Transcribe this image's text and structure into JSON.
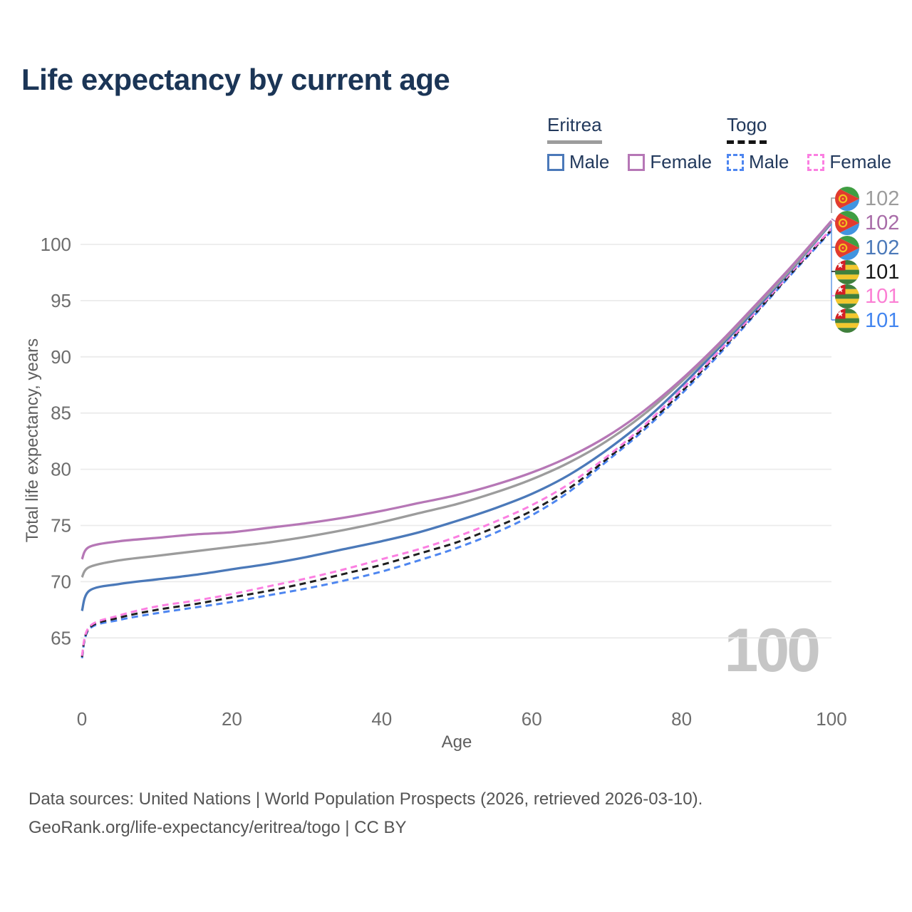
{
  "header": {
    "title": "Life expectancy by current age"
  },
  "legend": {
    "groups": [
      {
        "country": "Eritrea",
        "line_style": "solid",
        "underline_color": "#9c9c9c",
        "items": [
          {
            "label": "Male",
            "color": "#4b79b9",
            "dashed": false
          },
          {
            "label": "Female",
            "color": "#b677b6",
            "dashed": false
          }
        ]
      },
      {
        "country": "Togo",
        "line_style": "dashed",
        "underline_color": "#141414",
        "items": [
          {
            "label": "Male",
            "color": "#4e86f0",
            "dashed": true
          },
          {
            "label": "Female",
            "color": "#fb7fe1",
            "dashed": true
          }
        ]
      }
    ]
  },
  "chart_data": {
    "type": "line",
    "title": "Life expectancy by current age",
    "xlabel": "Age",
    "ylabel": "Total life expectancy, years",
    "xlim": [
      0,
      100
    ],
    "ylim": [
      59,
      105
    ],
    "xticks": [
      0,
      20,
      40,
      60,
      80,
      100
    ],
    "yticks": [
      65,
      70,
      75,
      80,
      85,
      90,
      95,
      100
    ],
    "grid": "horizontal-only",
    "age_counter": "100",
    "x": [
      0,
      1,
      5,
      10,
      15,
      20,
      25,
      30,
      35,
      40,
      45,
      50,
      55,
      60,
      65,
      70,
      75,
      80,
      85,
      90,
      95,
      100
    ],
    "series": [
      {
        "name": "Togo Male",
        "country": "Togo",
        "sex": "Male",
        "color": "#4e86f0",
        "dashed": true,
        "values": [
          63.2,
          65.8,
          66.6,
          67.2,
          67.7,
          68.2,
          68.8,
          69.4,
          70.1,
          70.9,
          71.9,
          73.0,
          74.3,
          75.9,
          78.0,
          80.7,
          83.5,
          86.7,
          90.2,
          93.9,
          97.6,
          101.2
        ]
      },
      {
        "name": "Togo Total",
        "country": "Togo",
        "sex": "Both",
        "color": "#1f1f1f",
        "dashed": true,
        "values": [
          63.3,
          65.9,
          66.8,
          67.5,
          68.0,
          68.6,
          69.2,
          69.9,
          70.7,
          71.5,
          72.5,
          73.5,
          74.8,
          76.3,
          78.3,
          80.9,
          83.7,
          86.9,
          90.4,
          94.0,
          97.7,
          101.3
        ]
      },
      {
        "name": "Togo Female",
        "country": "Togo",
        "sex": "Female",
        "color": "#fb7fe1",
        "dashed": true,
        "values": [
          63.4,
          66.0,
          67.0,
          67.8,
          68.3,
          68.9,
          69.6,
          70.3,
          71.1,
          72.0,
          72.9,
          74.0,
          75.3,
          76.8,
          78.7,
          81.1,
          83.9,
          87.1,
          90.5,
          94.1,
          97.8,
          101.4
        ]
      },
      {
        "name": "Eritrea Male",
        "country": "Eritrea",
        "sex": "Male",
        "color": "#4b79b9",
        "dashed": false,
        "values": [
          67.4,
          69.2,
          69.8,
          70.2,
          70.6,
          71.1,
          71.6,
          72.2,
          72.9,
          73.6,
          74.4,
          75.4,
          76.5,
          77.8,
          79.5,
          81.7,
          84.3,
          87.4,
          90.8,
          94.3,
          98.0,
          101.9
        ]
      },
      {
        "name": "Eritrea Total",
        "country": "Eritrea",
        "sex": "Both",
        "color": "#9c9c9c",
        "dashed": false,
        "values": [
          70.4,
          71.3,
          71.9,
          72.3,
          72.7,
          73.1,
          73.5,
          74.0,
          74.6,
          75.3,
          76.1,
          76.9,
          77.9,
          79.1,
          80.6,
          82.5,
          84.9,
          87.8,
          91.0,
          94.5,
          98.1,
          102.0
        ]
      },
      {
        "name": "Eritrea Female",
        "country": "Eritrea",
        "sex": "Female",
        "color": "#b677b6",
        "dashed": false,
        "values": [
          72.0,
          73.1,
          73.6,
          73.9,
          74.2,
          74.4,
          74.8,
          75.2,
          75.7,
          76.3,
          77.0,
          77.7,
          78.6,
          79.7,
          81.1,
          82.9,
          85.2,
          88.0,
          91.2,
          94.7,
          98.3,
          102.1
        ]
      }
    ],
    "end_labels": [
      {
        "value": "102",
        "color": "#9c9c9c",
        "flag": "eritrea"
      },
      {
        "value": "102",
        "color": "#a86ca8",
        "flag": "eritrea"
      },
      {
        "value": "102",
        "color": "#4b79b9",
        "flag": "eritrea"
      },
      {
        "value": "101",
        "color": "#161616",
        "flag": "togo"
      },
      {
        "value": "101",
        "color": "#fb7fd4",
        "flag": "togo"
      },
      {
        "value": "101",
        "color": "#4285f0",
        "flag": "togo"
      }
    ]
  },
  "footer": {
    "line1": "Data sources: United Nations | World Population Prospects (2026, retrieved 2026-03-10).",
    "line2": "GeoRank.org/life-expectancy/eritrea/togo | CC BY"
  }
}
